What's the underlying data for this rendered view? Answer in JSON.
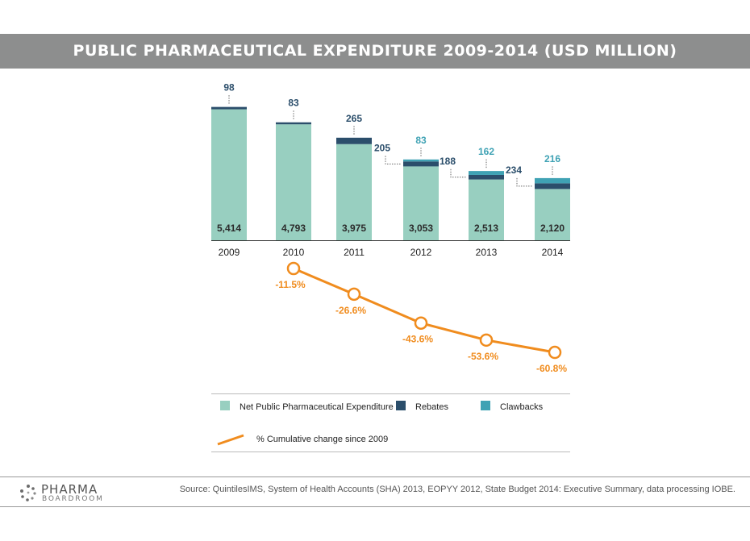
{
  "title": "PUBLIC PHARMACEUTICAL EXPENDITURE 2009-2014 (USD MILLION)",
  "colors": {
    "net": "#98cfc0",
    "rebates": "#2b4e6b",
    "clawbacks": "#3fa2b4",
    "line": "#f08c1e",
    "band": "#8d8e8e"
  },
  "chart_data": {
    "type": "bar",
    "stacked": true,
    "categories": [
      "2009",
      "2010",
      "2011",
      "2012",
      "2013",
      "2014"
    ],
    "series": [
      {
        "name": "Net Public Pharmaceutical Expenditure",
        "values": [
          5414,
          4793,
          3975,
          3053,
          2513,
          2120
        ],
        "labels": [
          "5,414",
          "4,793",
          "3,975",
          "3,053",
          "2,513",
          "2,120"
        ]
      },
      {
        "name": "Rebates",
        "values": [
          98,
          83,
          265,
          205,
          188,
          234
        ],
        "labels": [
          "98",
          "83",
          "265",
          "205",
          "188",
          "234"
        ]
      },
      {
        "name": "Clawbacks",
        "values": [
          0,
          0,
          0,
          83,
          162,
          216
        ],
        "labels": [
          "",
          "",
          "",
          "83",
          "162",
          "216"
        ]
      }
    ],
    "line": {
      "name": "% Cumulative change since 2009",
      "categories": [
        "2010",
        "2011",
        "2012",
        "2013",
        "2014"
      ],
      "values": [
        -11.5,
        -26.6,
        -43.6,
        -53.6,
        -60.8
      ],
      "labels": [
        "-11.5%",
        "-26.6%",
        "-43.6%",
        "-53.6%",
        "-60.8%"
      ]
    }
  },
  "legend": {
    "net": "Net Public Pharmaceutical Expenditure",
    "rebates": "Rebates",
    "clawbacks": "Clawbacks",
    "line": "% Cumulative change since 2009"
  },
  "footer": {
    "logo_line1": "PHARMA",
    "logo_line2": "BOARDROOM",
    "logo_icon": "dots-logo-icon",
    "source": "Source: QuintilesIMS, System of Health Accounts (SHA) 2013, EOPYY 2012, State Budget 2014: Executive Summary, data processing IOBE."
  }
}
